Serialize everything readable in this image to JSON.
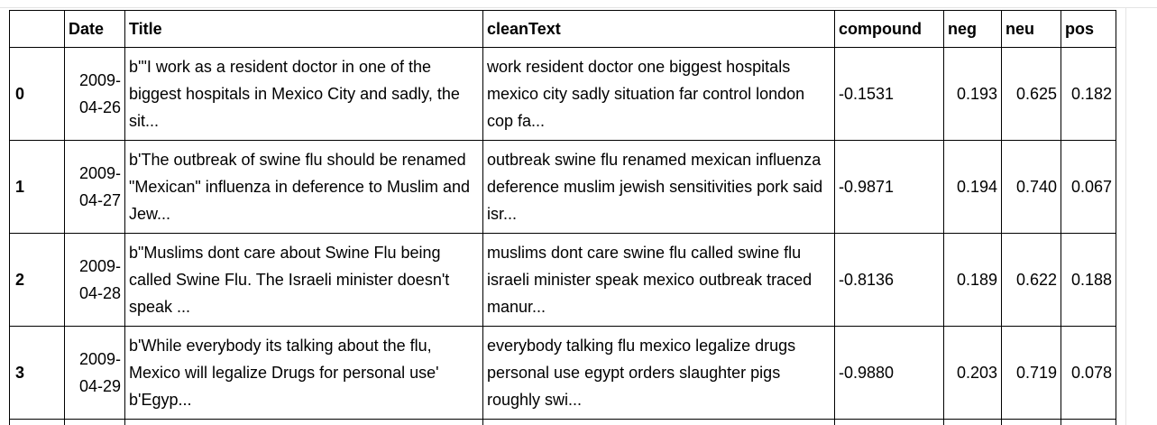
{
  "table": {
    "headers": [
      "",
      "Date",
      "Title",
      "cleanText",
      "compound",
      "neg",
      "neu",
      "pos"
    ],
    "rows": [
      {
        "index": "0",
        "date": "2009-04-26",
        "title": "b'\"I work as a resident doctor in one of the biggest hospitals in Mexico City and sadly, the sit...",
        "clean_text": "work resident doctor one biggest hospitals mexico city sadly situation far control london cop fa...",
        "compound": "-0.1531",
        "neg": "0.193",
        "neu": "0.625",
        "pos": "0.182"
      },
      {
        "index": "1",
        "date": "2009-04-27",
        "title": "b'The outbreak of swine flu should be renamed \"Mexican\" influenza in deference to Muslim and Jew...",
        "clean_text": "outbreak swine flu renamed mexican influenza deference muslim jewish sensitivities pork said isr...",
        "compound": "-0.9871",
        "neg": "0.194",
        "neu": "0.740",
        "pos": "0.067"
      },
      {
        "index": "2",
        "date": "2009-04-28",
        "title": "b\"Muslims dont care about Swine Flu being called Swine Flu. The Israeli minister doesn't speak ...",
        "clean_text": "muslims dont care swine flu called swine flu israeli minister speak mexico outbreak traced manur...",
        "compound": "-0.8136",
        "neg": "0.189",
        "neu": "0.622",
        "pos": "0.188"
      },
      {
        "index": "3",
        "date": "2009-04-29",
        "title": "b'While everybody its talking about the flu, Mexico will legalize Drugs for personal use' b'Egyp...",
        "clean_text": "everybody talking flu mexico legalize drugs personal use egypt orders slaughter pigs roughly swi...",
        "compound": "-0.9880",
        "neg": "0.203",
        "neu": "0.719",
        "pos": "0.078"
      }
    ]
  }
}
